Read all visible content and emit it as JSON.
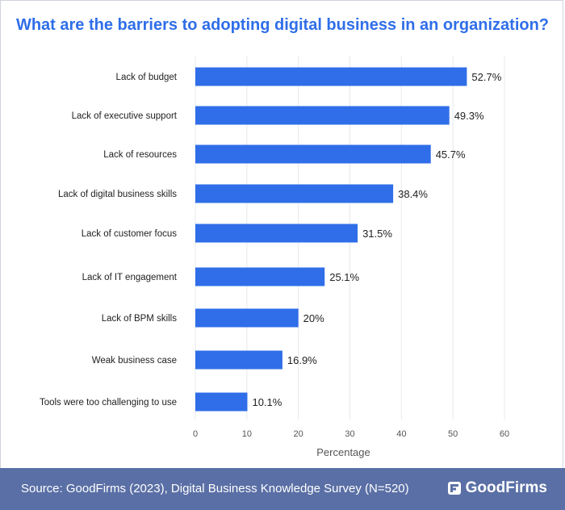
{
  "title": "What are the barriers to adopting digital business in an organization?",
  "footer": {
    "source": "Source: GoodFirms (2023), Digital Business Knowledge Survey (N=520)",
    "brand": "GoodFirms",
    "brand_icon": "goodfirms-logo-icon"
  },
  "colors": {
    "bar": "#2f6ee8",
    "title": "#2f6ee8",
    "footer_bg": "#5a6fa5"
  },
  "chart_data": {
    "type": "bar",
    "orientation": "horizontal",
    "categories": [
      "Lack of budget",
      "Lack of executive support",
      "Lack of resources",
      "Lack of digital business skills",
      "Lack of customer focus",
      "Lack of IT engagement",
      "Lack of BPM skills",
      "Weak business case",
      "Tools were too challenging to use"
    ],
    "values": [
      52.7,
      49.3,
      45.7,
      38.4,
      31.5,
      25.1,
      20,
      16.9,
      10.1
    ],
    "value_labels": [
      "52.7%",
      "49.3%",
      "45.7%",
      "38.4%",
      "31.5%",
      "25.1%",
      "20%",
      "16.9%",
      "10.1%"
    ],
    "xlabel": "Percentage",
    "ylabel": "",
    "xlim": [
      0,
      60
    ],
    "xticks": [
      0,
      10,
      20,
      30,
      40,
      50,
      60
    ],
    "grid": "vertical"
  }
}
